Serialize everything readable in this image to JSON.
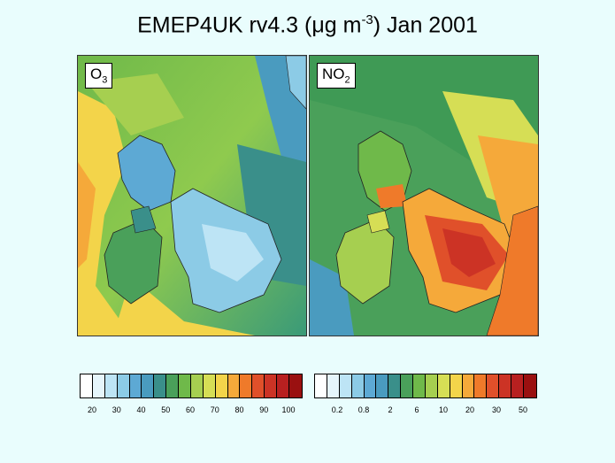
{
  "title": {
    "prefix": "EMEP4UK rv4.3 (",
    "mu": "μ",
    "unit_base": "g m",
    "unit_exp": "-3",
    "suffix": ")  Jan 2001"
  },
  "panels": [
    {
      "label_main": "O",
      "label_sub": "3"
    },
    {
      "label_main": "NO",
      "label_sub": "2"
    }
  ],
  "colorbars": [
    {
      "colors": [
        "#ffffff",
        "#e6f5fb",
        "#bde4f5",
        "#8ccbe6",
        "#5da9d4",
        "#4a9bbf",
        "#3a8f8a",
        "#4aa05a",
        "#6fb94a",
        "#a6cf50",
        "#d6de55",
        "#f3d44a",
        "#f5a93a",
        "#ef7a2a",
        "#e0502a",
        "#cc3325",
        "#b82020",
        "#9a1010"
      ],
      "ticks": [
        "20",
        "30",
        "40",
        "50",
        "60",
        "70",
        "80",
        "90",
        "100"
      ]
    },
    {
      "colors": [
        "#ffffff",
        "#e6f5fb",
        "#bde4f5",
        "#8ccbe6",
        "#5da9d4",
        "#4a9bbf",
        "#3a8f8a",
        "#4aa05a",
        "#6fb94a",
        "#a6cf50",
        "#d6de55",
        "#f3d44a",
        "#f5a93a",
        "#ef7a2a",
        "#e0502a",
        "#cc3325",
        "#b82020",
        "#9a1010"
      ],
      "ticks": [
        "0.2",
        "0.8",
        "2",
        "6",
        "10",
        "20",
        "30",
        "50"
      ]
    }
  ]
}
